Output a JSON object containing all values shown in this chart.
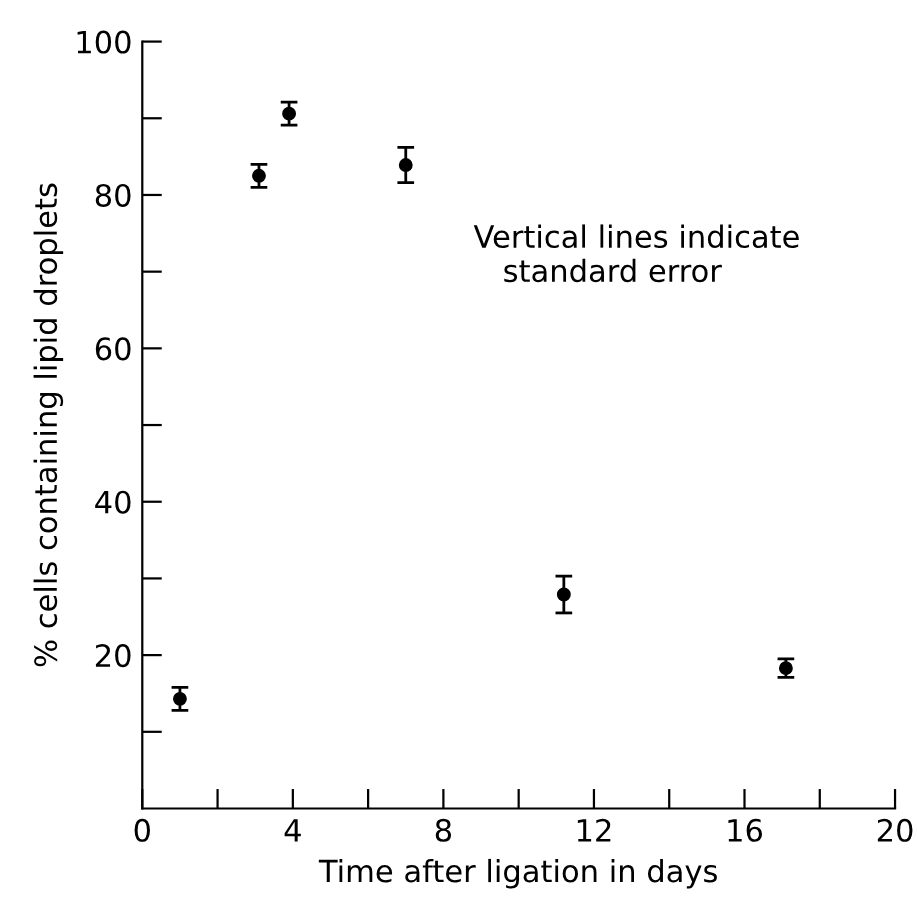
{
  "chart_data": {
    "type": "scatter",
    "xlabel": "Time after ligation in days",
    "ylabel": "% cells containing lipid droplets",
    "x": [
      1.0,
      3.1,
      3.9,
      7.0,
      11.2,
      17.1
    ],
    "values": [
      14.3,
      82.5,
      90.6,
      83.9,
      27.9,
      18.3
    ],
    "errors": [
      1.5,
      1.5,
      1.5,
      2.3,
      2.4,
      1.2
    ],
    "color": "#000000",
    "marker": "circle",
    "xlim": [
      0,
      20
    ],
    "ylim": [
      0,
      100
    ],
    "xticks": [
      0,
      {
        "value": 2,
        "label": null
      },
      4,
      {
        "value": 6,
        "label": null
      },
      8,
      {
        "value": 10,
        "label": null
      },
      12,
      {
        "value": 14,
        "label": null
      },
      16,
      {
        "value": 18,
        "label": null
      },
      20
    ],
    "yticks": [
      {
        "value": 10,
        "label": null
      },
      20,
      {
        "value": 30,
        "label": null
      },
      40,
      {
        "value": 50,
        "label": null
      },
      60,
      {
        "value": 70,
        "label": null
      },
      80,
      {
        "value": 90,
        "label": null
      },
      100
    ],
    "annotations": [
      "Vertical lines indicate\n   standard error"
    ],
    "grid": false,
    "legend": false
  }
}
